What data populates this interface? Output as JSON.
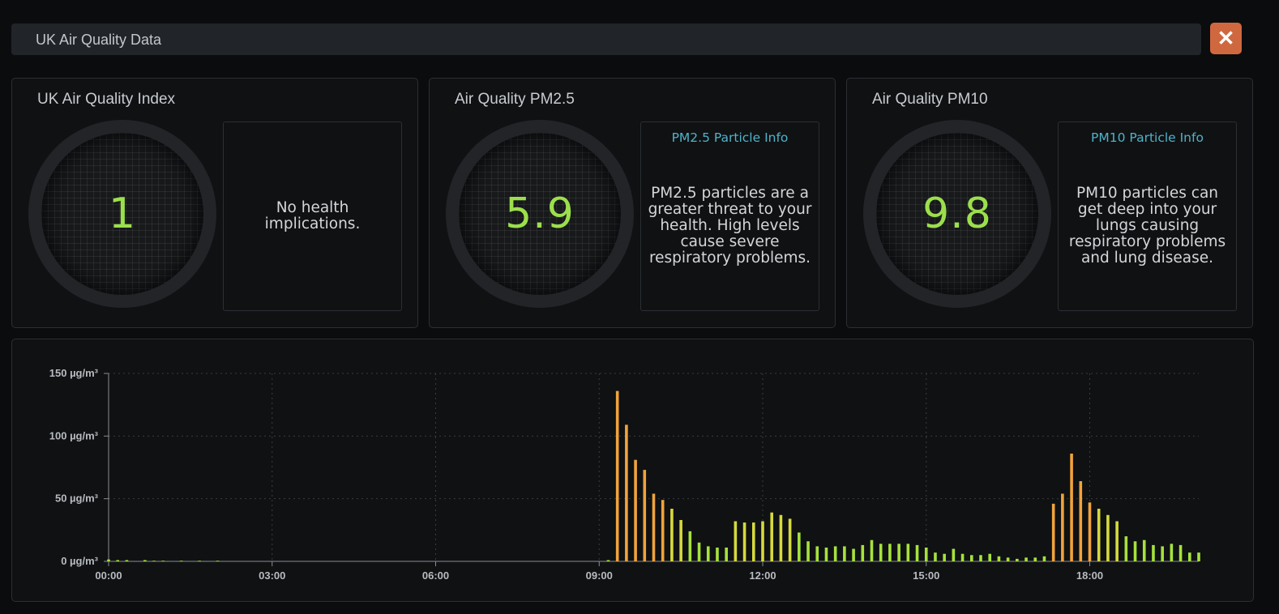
{
  "window": {
    "title": "UK Air Quality Data",
    "close_icon": "close-icon"
  },
  "cards": [
    {
      "title": "UK Air Quality Index",
      "value": "1",
      "info_title": "",
      "info_text": "No health implications."
    },
    {
      "title": "Air Quality PM2.5",
      "value": "5.9",
      "info_title": "PM2.5 Particle Info",
      "info_text": "PM2.5 particles are a greater threat to your health. High levels cause severe respiratory problems."
    },
    {
      "title": "Air Quality PM10",
      "value": "9.8",
      "info_title": "PM10 Particle Info",
      "info_text": "PM10 particles can get deep into your lungs causing respiratory problems and lung disease."
    }
  ],
  "colors": {
    "accent_value": "#9cdf4c",
    "info_title": "#4fb3c9",
    "close_bg": "#d0683f",
    "bar_low": "#a6e23c",
    "bar_mid": "#d6d93c",
    "bar_high": "#f0a33c"
  },
  "chart_data": {
    "type": "bar",
    "title": "",
    "xlabel": "",
    "ylabel": "",
    "ylim": [
      0,
      150
    ],
    "xlim_hours": [
      0,
      20
    ],
    "y_ticks": [
      "0 µg/m³",
      "50 µg/m³",
      "100 µg/m³",
      "150 µg/m³"
    ],
    "y_tick_values": [
      0,
      50,
      100,
      150
    ],
    "x_ticks": [
      "00:00",
      "03:00",
      "06:00",
      "09:00",
      "12:00",
      "15:00",
      "18:00"
    ],
    "x_tick_values": [
      0,
      3,
      6,
      9,
      12,
      15,
      18
    ],
    "grid": true,
    "x": [
      "00:00",
      "00:10",
      "00:20",
      "00:40",
      "00:50",
      "01:00",
      "01:20",
      "01:40",
      "02:00",
      "09:10",
      "09:20",
      "09:30",
      "09:40",
      "09:50",
      "10:00",
      "10:10",
      "10:20",
      "10:30",
      "10:40",
      "10:50",
      "11:00",
      "11:10",
      "11:20",
      "11:30",
      "11:40",
      "11:50",
      "12:00",
      "12:10",
      "12:20",
      "12:30",
      "12:40",
      "12:50",
      "13:00",
      "13:10",
      "13:20",
      "13:30",
      "13:40",
      "13:50",
      "14:00",
      "14:10",
      "14:20",
      "14:30",
      "14:40",
      "14:50",
      "15:00",
      "15:10",
      "15:20",
      "15:30",
      "15:40",
      "15:50",
      "16:00",
      "16:10",
      "16:20",
      "16:30",
      "16:40",
      "16:50",
      "17:00",
      "17:10",
      "17:20",
      "17:30",
      "17:40",
      "17:50",
      "18:00",
      "18:10",
      "18:20",
      "18:30",
      "18:40",
      "18:50",
      "19:00",
      "19:10",
      "19:20",
      "19:30",
      "19:40",
      "19:50",
      "20:00"
    ],
    "values": [
      1.5,
      1,
      1,
      1,
      0.5,
      0.5,
      0.5,
      0.5,
      0.5,
      1,
      136,
      109,
      81,
      73,
      54,
      49,
      42,
      33,
      24,
      15,
      12,
      11,
      11,
      32,
      31,
      31,
      32,
      39,
      37,
      34,
      23,
      16,
      12,
      11,
      12,
      12,
      10,
      13,
      17,
      14,
      14,
      14,
      14,
      13,
      11,
      7,
      6,
      10,
      6,
      5,
      5,
      6,
      4,
      3,
      2,
      3,
      3,
      4,
      46,
      54,
      86,
      64,
      47,
      42,
      37,
      32,
      20,
      16,
      17,
      13,
      12,
      14,
      13,
      7,
      7
    ]
  }
}
